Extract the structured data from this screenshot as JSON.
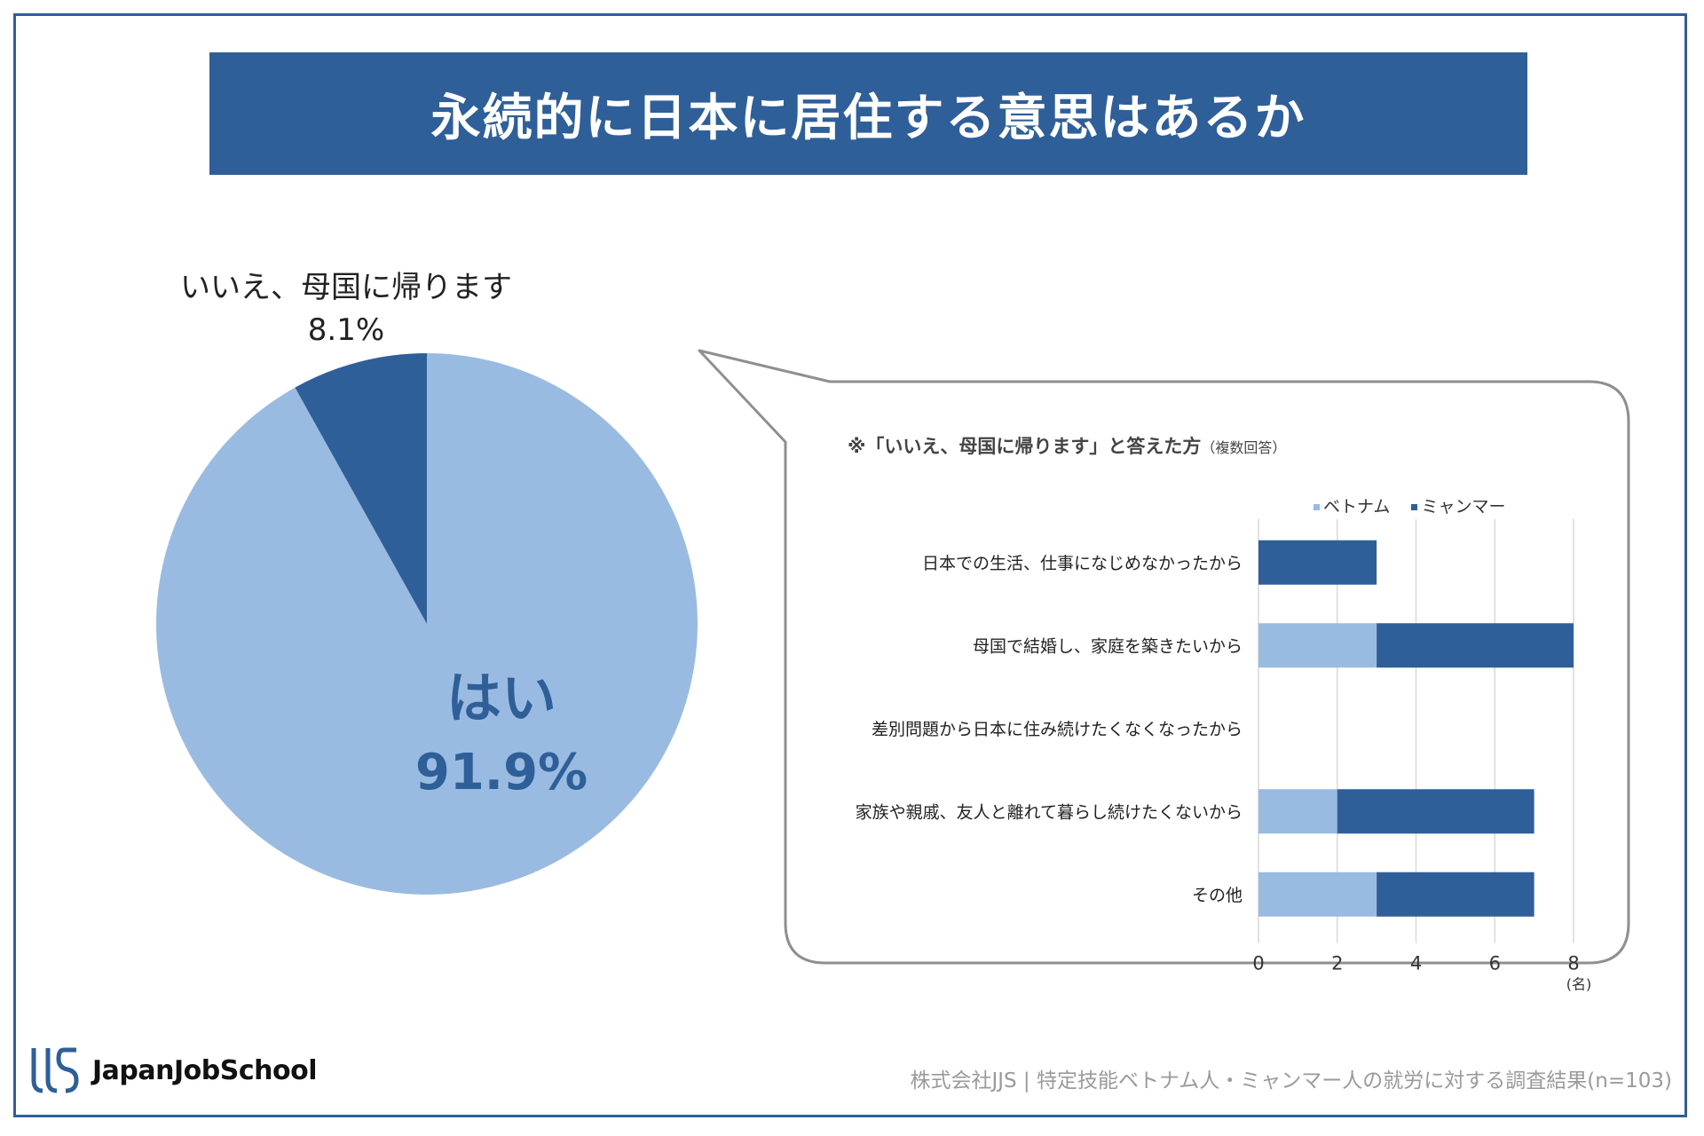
{
  "title": "永続的に日本に居住する意思はあるか",
  "pie": {
    "yes_label": "はい",
    "yes_pct": "91.9%",
    "no_label": "いいえ、母国に帰ります",
    "no_pct": "8.1%"
  },
  "callout": {
    "note": "※「いいえ、母国に帰ります」と答えた方",
    "note_small": "（複数回答）",
    "unit": "(名)"
  },
  "legend": {
    "vietnam": "ベトナム",
    "myanmar": "ミャンマー"
  },
  "colors": {
    "light": "#9abbe1",
    "dark": "#2f5f98",
    "title_bg": "#2f5f98"
  },
  "chart_data": [
    {
      "type": "pie",
      "title": "永続的に日本に居住する意思はあるか",
      "slices": [
        {
          "label": "はい",
          "value": 91.9
        },
        {
          "label": "いいえ、母国に帰ります",
          "value": 8.1
        }
      ]
    },
    {
      "type": "bar",
      "orientation": "horizontal",
      "stacked": true,
      "title": "※「いいえ、母国に帰ります」と答えた方（複数回答）",
      "categories": [
        "日本での生活、仕事になじめなかったから",
        "母国で結婚し、家庭を築きたいから",
        "差別問題から日本に住み続けたくなくなったから",
        "家族や親戚、友人と離れて暮らし続けたくないから",
        "その他"
      ],
      "series": [
        {
          "name": "ベトナム",
          "values": [
            0,
            3,
            0,
            2,
            3
          ]
        },
        {
          "name": "ミャンマー",
          "values": [
            3,
            5,
            0,
            5,
            4
          ]
        }
      ],
      "xlim": [
        0,
        8
      ],
      "xticks": [
        0,
        2,
        4,
        6,
        8
      ],
      "xlabel": "(名)"
    }
  ],
  "footer": {
    "brand": "JapanJobSchool",
    "source": "株式会社JJS | 特定技能ベトナム人・ミャンマー人の就労に対する調査結果(n=103)"
  }
}
